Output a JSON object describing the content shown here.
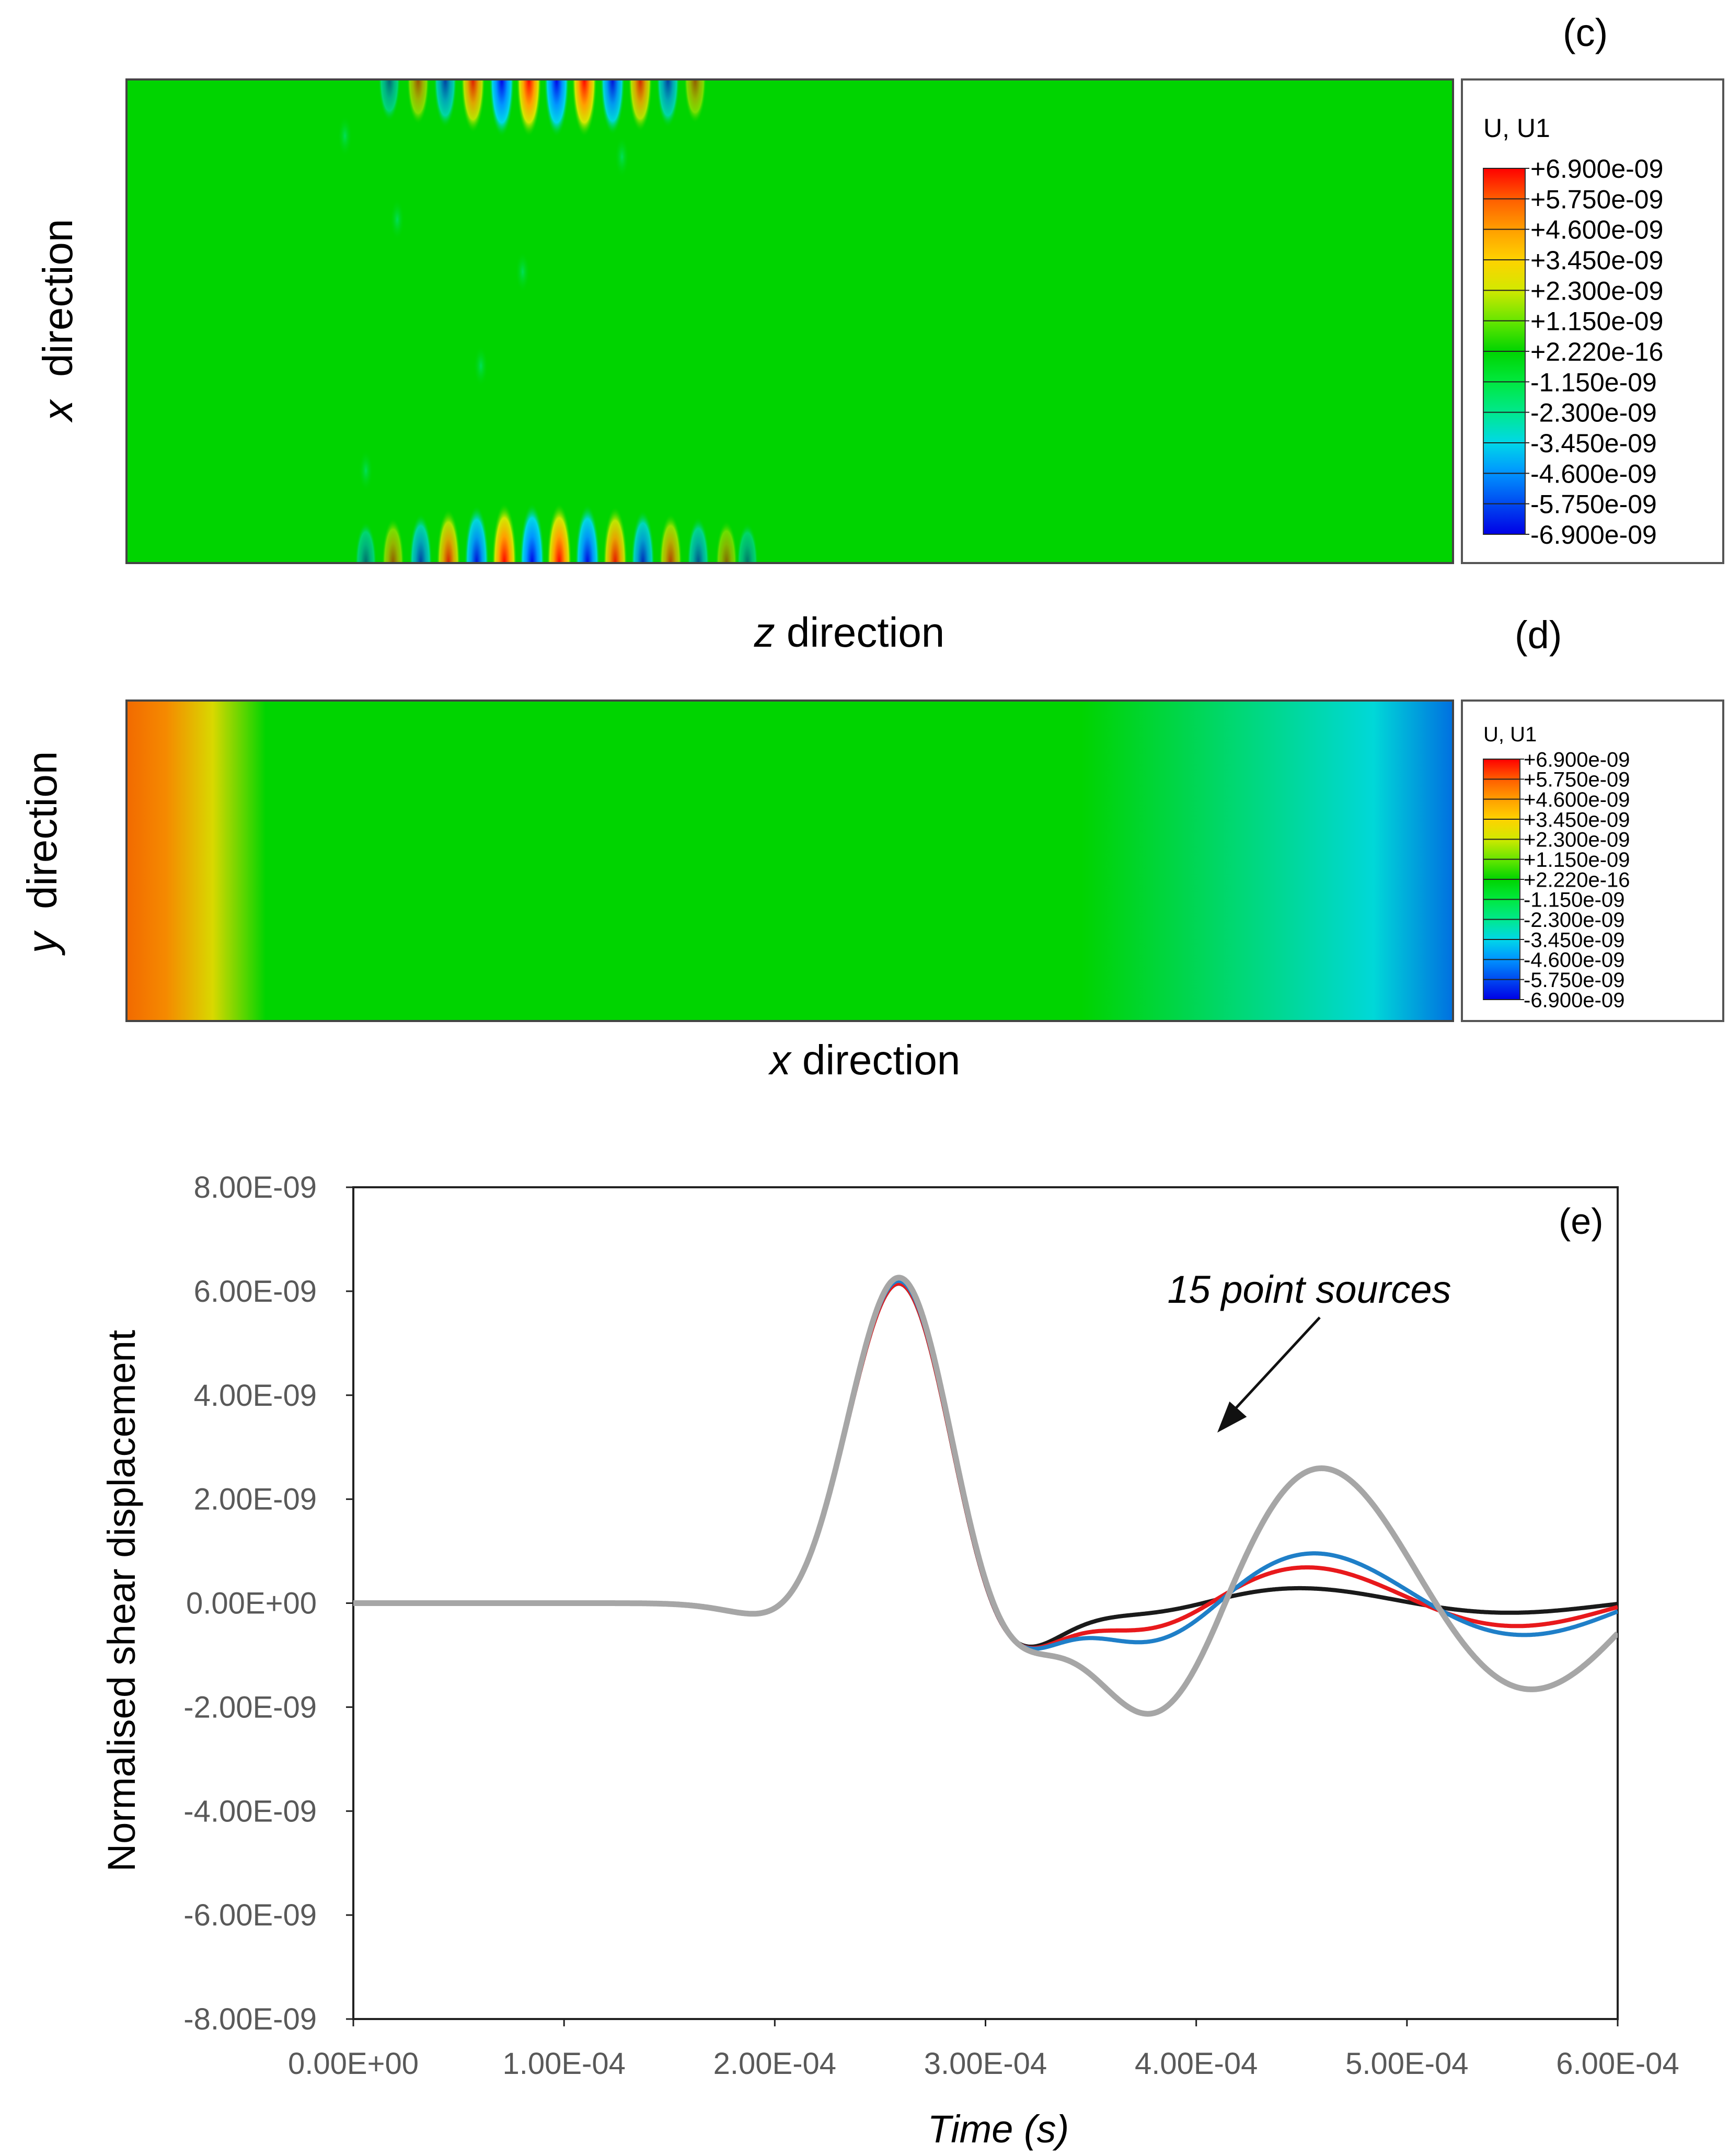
{
  "panels": {
    "c": {
      "label": "(c)",
      "xlabel_var": "z",
      "xlabel_word": " direction",
      "ylabel_var": "x",
      "ylabel_word": "  direction",
      "legend_title": "U, U1",
      "legend_values": [
        "+6.900e-09",
        "+5.750e-09",
        "+4.600e-09",
        "+3.450e-09",
        "+2.300e-09",
        "+1.150e-09",
        "+2.220e-16",
        "-1.150e-09",
        "-2.300e-09",
        "-3.450e-09",
        "-4.600e-09",
        "-5.750e-09",
        "-6.900e-09"
      ]
    },
    "d": {
      "label": "(d)",
      "xlabel_var": "x",
      "xlabel_word": " direction",
      "ylabel_var": "y",
      "ylabel_word": "  direction",
      "legend_title": "U, U1",
      "legend_values": [
        "+6.900e-09",
        "+5.750e-09",
        "+4.600e-09",
        "+3.450e-09",
        "+2.300e-09",
        "+1.150e-09",
        "+2.220e-16",
        "-1.150e-09",
        "-2.300e-09",
        "-3.450e-09",
        "-4.600e-09",
        "-5.750e-09",
        "-6.900e-09"
      ]
    }
  },
  "colormap": [
    "#ff0000",
    "#ff5a00",
    "#ffa000",
    "#ffd200",
    "#d4e800",
    "#63e600",
    "#00d400",
    "#00e83c",
    "#00e890",
    "#00d8e8",
    "#0096ff",
    "#0046f0",
    "#0000e6"
  ],
  "chart_data": {
    "type": "line",
    "label": "(e)",
    "title": "",
    "xlabel": "Time (s)",
    "ylabel": "Normalised shear displacement",
    "xlim": [
      0,
      0.0006
    ],
    "ylim": [
      -8e-09,
      8e-09
    ],
    "xticks": [
      "0.00E+00",
      "1.00E-04",
      "2.00E-04",
      "3.00E-04",
      "4.00E-04",
      "5.00E-04",
      "6.00E-04"
    ],
    "yticks": [
      "8.00E-09",
      "6.00E-09",
      "4.00E-09",
      "2.00E-09",
      "0.00E+00",
      "-2.00E-09",
      "-4.00E-09",
      "-6.00E-09",
      "-8.00E-09"
    ],
    "grid": false,
    "annotation": {
      "text": "15 point sources",
      "x": 0.00041,
      "y": 3.1e-09
    },
    "series": [
      {
        "color": "#1a1a1a",
        "tail_amplitude": 3.5e-10,
        "peak_amplitude": 6.35e-09
      },
      {
        "color": "#e8191c",
        "tail_amplitude": 8.5e-10,
        "peak_amplitude": 6.35e-09
      },
      {
        "color": "#1f7fc8",
        "tail_amplitude": 1.2e-09,
        "peak_amplitude": 6.4e-09
      },
      {
        "color": "#a6a6a6",
        "tail_amplitude": 3.3e-09,
        "peak_amplitude": 6.45e-09
      }
    ]
  }
}
